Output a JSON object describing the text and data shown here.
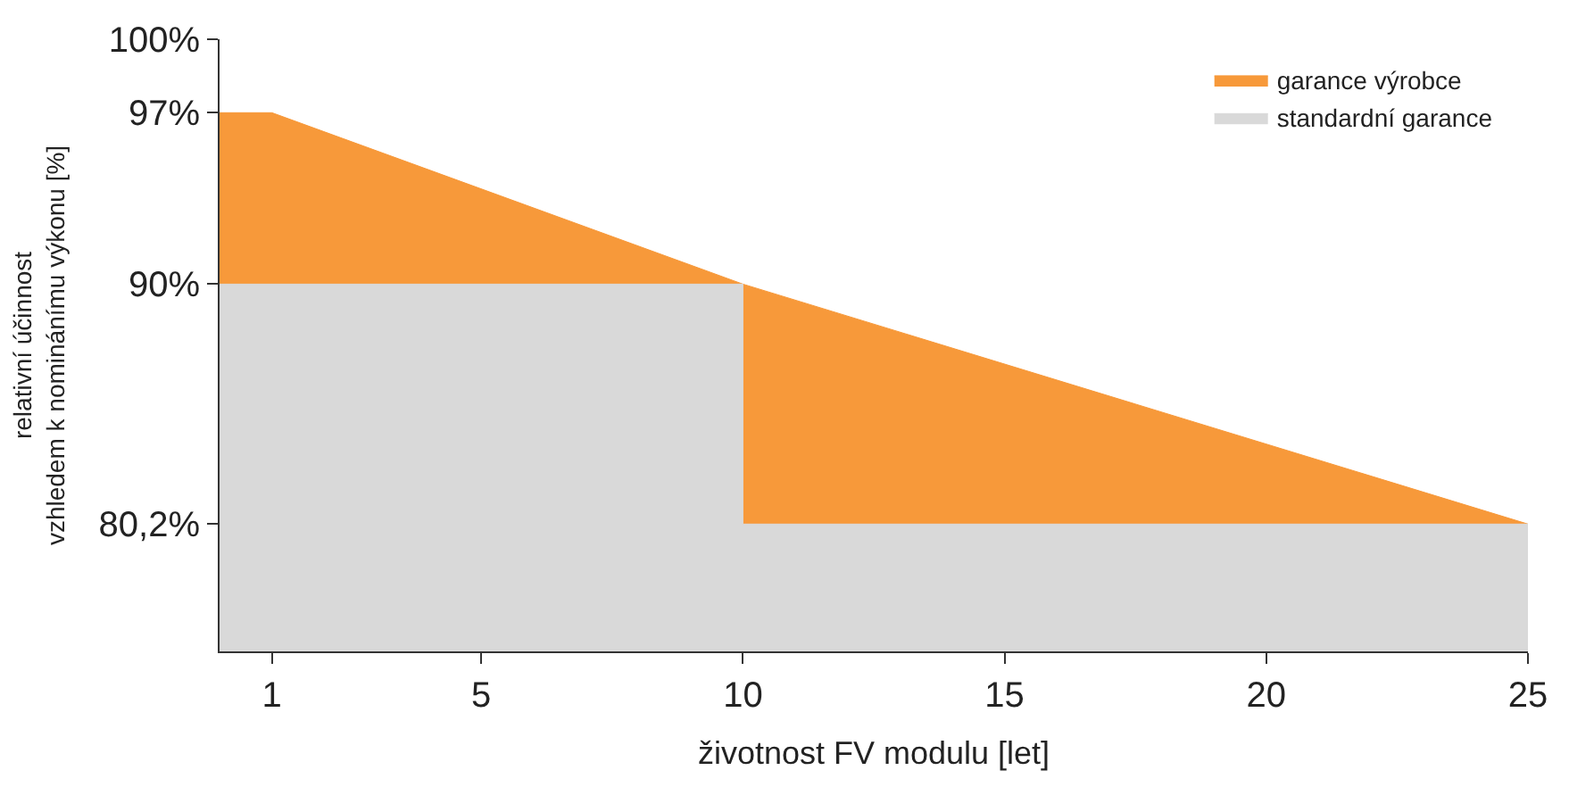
{
  "chart_data": {
    "type": "area",
    "xlabel": "životnost FV modulu [let]",
    "ylabel": "relativní účinnost\nvzhledem k nominánímu výkonu [%]",
    "series": [
      {
        "name": "garance výrobce",
        "color": "#f7993a",
        "x": [
          0,
          1,
          10,
          25
        ],
        "values": [
          97,
          97,
          90,
          80.2
        ]
      },
      {
        "name": "standardní garance",
        "color": "#d9d9d9",
        "x": [
          0,
          10,
          10,
          25
        ],
        "values": [
          90,
          90,
          80.2,
          80.2
        ]
      }
    ],
    "xlim": [
      0,
      25
    ],
    "xticks": [
      1,
      5,
      10,
      15,
      20,
      25
    ],
    "ylim": [
      75,
      100
    ],
    "yticks": [
      {
        "value": 80.2,
        "label": "80,2%"
      },
      {
        "value": 90,
        "label": "90%"
      },
      {
        "value": 97,
        "label": "97%"
      },
      {
        "value": 100,
        "label": "100%"
      }
    ],
    "legend": "top right"
  }
}
